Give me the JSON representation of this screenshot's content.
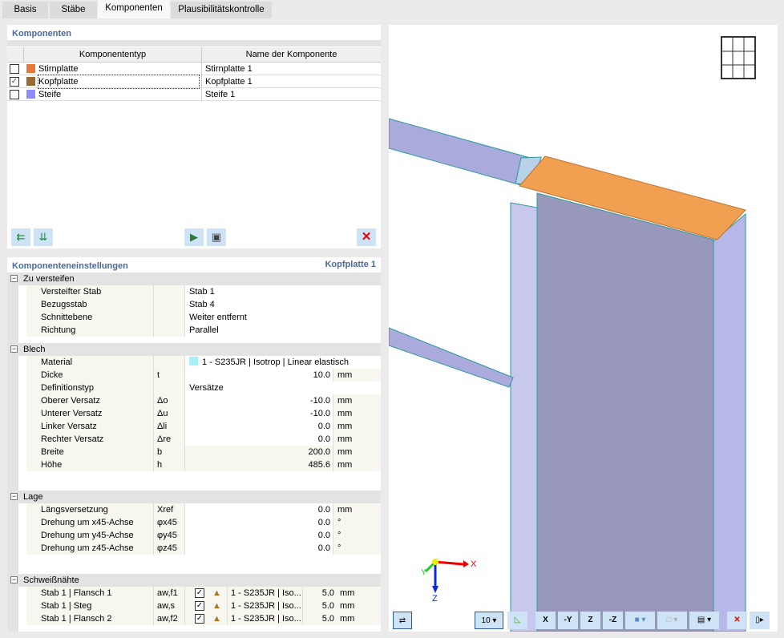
{
  "tabs": [
    {
      "label": "Basis"
    },
    {
      "label": "Stäbe"
    },
    {
      "label": "Komponenten",
      "active": true
    },
    {
      "label": "Plausibilitätskontrolle"
    }
  ],
  "components": {
    "title": "Komponenten",
    "columns": [
      "Komponententyp",
      "Name der Komponente"
    ],
    "rows": [
      {
        "checked": false,
        "color": "#e8783a",
        "type": "Stirnplatte",
        "name": "Stirnplatte 1"
      },
      {
        "checked": true,
        "color": "#9a6a30",
        "type": "Kopfplatte",
        "name": "Kopfplatte 1"
      },
      {
        "checked": false,
        "color": "#8c8cff",
        "type": "Steife",
        "name": "Steife 1"
      }
    ],
    "toolbar": [
      "move-up-icon",
      "move-down-icon",
      "import-icon",
      "save-icon",
      "delete-icon"
    ]
  },
  "settings": {
    "title": "Komponenteneinstellungen",
    "selected": "Kopfplatte 1",
    "sections": {
      "zu": {
        "label": "Zu versteifen",
        "rows": [
          {
            "label": "Versteifter Stab",
            "value": "Stab 1"
          },
          {
            "label": "Bezugsstab",
            "value": "Stab 4"
          },
          {
            "label": "Schnittebene",
            "value": "Weiter entfernt"
          },
          {
            "label": "Richtung",
            "value": "Parallel"
          }
        ]
      },
      "blech": {
        "label": "Blech",
        "rows": [
          {
            "label": "Material",
            "value": "1 - S235JR | Isotrop | Linear elastisch",
            "color": "#a8f0f8"
          },
          {
            "label": "Dicke",
            "sym": "t",
            "value": "10.0",
            "unit": "mm"
          },
          {
            "label": "Definitionstyp",
            "value": "Versätze"
          },
          {
            "label": "Oberer Versatz",
            "sym": "Δo",
            "value": "-10.0",
            "unit": "mm"
          },
          {
            "label": "Unterer Versatz",
            "sym": "Δu",
            "value": "-10.0",
            "unit": "mm"
          },
          {
            "label": "Linker Versatz",
            "sym": "Δli",
            "value": "0.0",
            "unit": "mm"
          },
          {
            "label": "Rechter Versatz",
            "sym": "Δre",
            "value": "0.0",
            "unit": "mm"
          },
          {
            "label": "Breite",
            "sym": "b",
            "value": "200.0",
            "unit": "mm"
          },
          {
            "label": "Höhe",
            "sym": "h",
            "value": "485.6",
            "unit": "mm"
          }
        ]
      },
      "lage": {
        "label": "Lage",
        "rows": [
          {
            "label": "Längsversetzung",
            "sym": "Xref",
            "value": "0.0",
            "unit": "mm"
          },
          {
            "label": "Drehung um x45-Achse",
            "sym": "φx45",
            "value": "0.0",
            "unit": "°"
          },
          {
            "label": "Drehung um y45-Achse",
            "sym": "φy45",
            "value": "0.0",
            "unit": "°"
          },
          {
            "label": "Drehung um z45-Achse",
            "sym": "φz45",
            "value": "0.0",
            "unit": "°"
          }
        ]
      },
      "schw": {
        "label": "Schweißnähte",
        "rows": [
          {
            "label": "Stab 1 | Flansch 1",
            "sym": "aw,f1",
            "checked": true,
            "material": "1 - S235JR | Iso...",
            "value": "5.0",
            "unit": "mm"
          },
          {
            "label": "Stab 1 | Steg",
            "sym": "aw,s",
            "checked": true,
            "material": "1 - S235JR | Iso...",
            "value": "5.0",
            "unit": "mm"
          },
          {
            "label": "Stab 1 | Flansch 2",
            "sym": "aw,f2",
            "checked": true,
            "material": "1 - S235JR | Iso...",
            "value": "5.0",
            "unit": "mm"
          }
        ]
      }
    }
  },
  "view": {
    "axes": {
      "x": "X",
      "y": "Y",
      "z": "Z"
    },
    "scale_label": "10",
    "toolbar": {
      "x": "X",
      "y": "-Y",
      "z": "Z",
      "mz": "-Z"
    },
    "colors": {
      "plate": "#f0a050",
      "member": "#aaaadc",
      "column": "#9898bc"
    }
  }
}
